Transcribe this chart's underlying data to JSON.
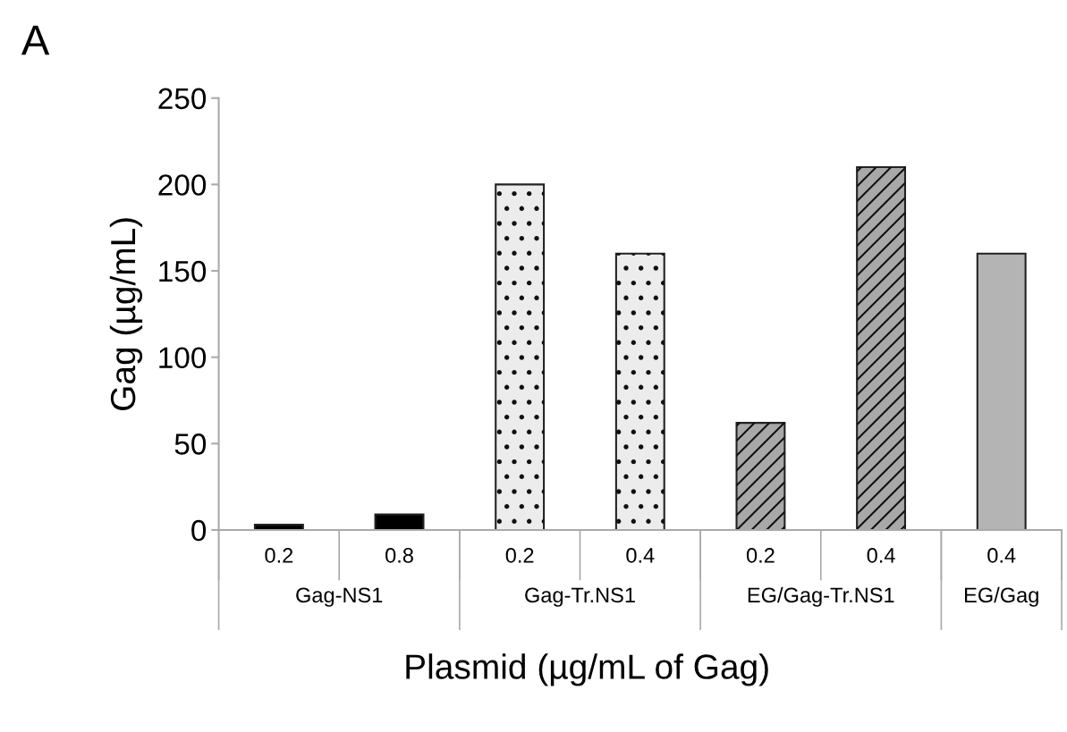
{
  "chart_data": {
    "type": "bar",
    "title": "A",
    "xlabel": "Plasmid (µg/mL of Gag)",
    "ylabel": "Gag (µg/mL)",
    "categories": [
      "0.2",
      "0.8",
      "0.2",
      "0.4",
      "0.2",
      "0.4",
      "0.4"
    ],
    "values": [
      3,
      9,
      200,
      160,
      62,
      210,
      160
    ],
    "colors": [
      "#000000",
      "#000000",
      "#ececec",
      "#ececec",
      "#a8a8a8",
      "#a8a8a8",
      "#b4b4b4"
    ],
    "ylim": [
      0,
      250
    ],
    "yticks": [
      0,
      50,
      100,
      150,
      200,
      250
    ],
    "annotations": [
      "Gag-NS1",
      "Gag-Tr.NS1",
      "EG/Gag-Tr.NS1",
      "EG/Gag"
    ],
    "grid": false
  }
}
